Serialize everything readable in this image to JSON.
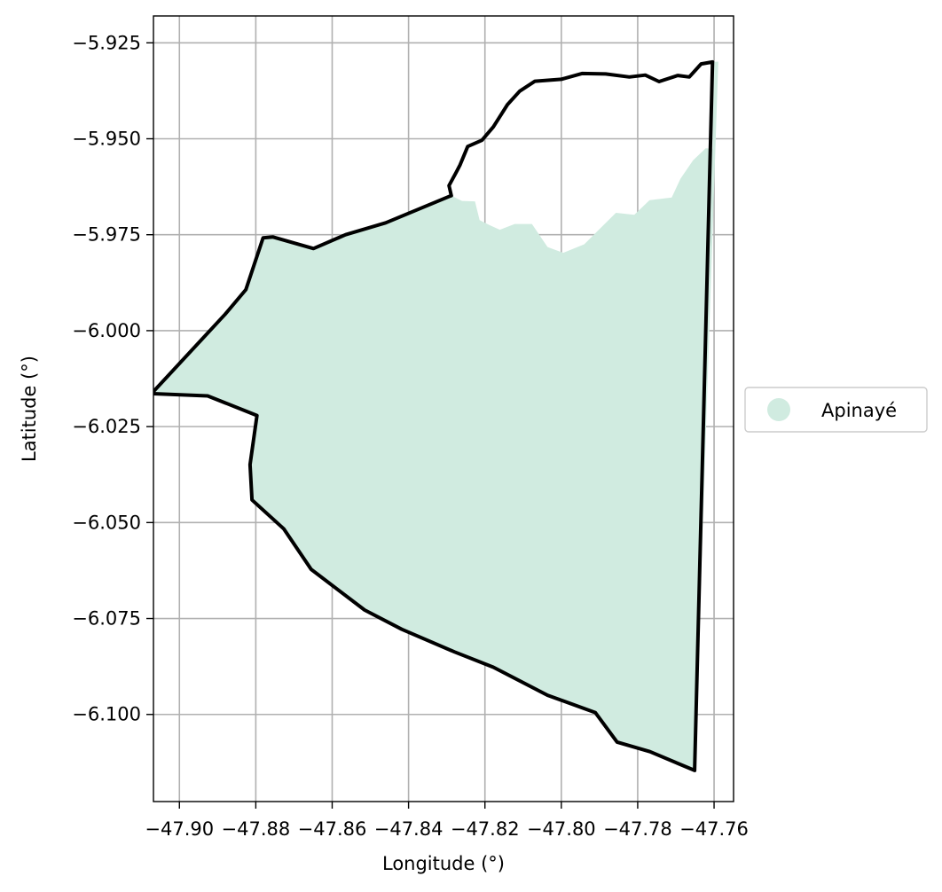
{
  "chart_data": {
    "type": "map",
    "title": "",
    "xlabel": "Longitude (°)",
    "ylabel": "Latitude (°)",
    "xlim": [
      -47.9068,
      -47.7549
    ],
    "ylim": [
      -6.1227,
      -5.918
    ],
    "xticks": [
      -47.9,
      -47.88,
      -47.86,
      -47.84,
      -47.82,
      -47.8,
      -47.78,
      -47.76
    ],
    "xtick_labels": [
      "−47.90",
      "−47.88",
      "−47.86",
      "−47.84",
      "−47.82",
      "−47.80",
      "−47.78",
      "−47.76"
    ],
    "yticks": [
      -5.925,
      -5.95,
      -5.975,
      -6.0,
      -6.025,
      -6.05,
      -6.075,
      -6.1
    ],
    "ytick_labels": [
      "−5.925",
      "−5.950",
      "−5.975",
      "−6.000",
      "−6.025",
      "−6.050",
      "−6.075",
      "−6.100"
    ],
    "grid": true,
    "legend": {
      "placement": "center-right-outside",
      "entries": [
        {
          "label": "Apinayé",
          "color": "#d0ebe0"
        }
      ]
    },
    "fill_color": "#d0ebe0",
    "boundary_color": "#000000",
    "territory_fill": [
      [
        -47.8288,
        -5.9648
      ],
      [
        -47.826,
        -5.9662
      ],
      [
        -47.8226,
        -5.9663
      ],
      [
        -47.8214,
        -5.9712
      ],
      [
        -47.8188,
        -5.9725
      ],
      [
        -47.8161,
        -5.9737
      ],
      [
        -47.8122,
        -5.9722
      ],
      [
        -47.8077,
        -5.9722
      ],
      [
        -47.8036,
        -5.9782
      ],
      [
        -47.7995,
        -5.9797
      ],
      [
        -47.794,
        -5.9775
      ],
      [
        -47.7904,
        -5.9739
      ],
      [
        -47.7857,
        -5.9693
      ],
      [
        -47.7809,
        -5.9698
      ],
      [
        -47.7769,
        -5.966
      ],
      [
        -47.7711,
        -5.9653
      ],
      [
        -47.7688,
        -5.9604
      ],
      [
        -47.7655,
        -5.9556
      ],
      [
        -47.7622,
        -5.9525
      ],
      [
        -47.7604,
        -5.9526
      ],
      [
        -47.7604,
        -5.93
      ],
      [
        -47.7589,
        -5.9299
      ],
      [
        -47.7651,
        -6.1146
      ],
      [
        -47.7768,
        -6.1097
      ],
      [
        -47.7854,
        -6.1072
      ],
      [
        -47.7911,
        -6.0995
      ],
      [
        -47.8036,
        -6.095
      ],
      [
        -47.8178,
        -6.0877
      ],
      [
        -47.828,
        -6.0837
      ],
      [
        -47.8418,
        -6.0778
      ],
      [
        -47.8515,
        -6.0728
      ],
      [
        -47.8655,
        -6.0622
      ],
      [
        -47.8727,
        -6.0516
      ],
      [
        -47.881,
        -6.0441
      ],
      [
        -47.8815,
        -6.0349
      ],
      [
        -47.8797,
        -6.0221
      ],
      [
        -47.8926,
        -6.017
      ],
      [
        -47.9073,
        -6.0164
      ],
      [
        -47.888,
        -5.9957
      ],
      [
        -47.8826,
        -5.9893
      ],
      [
        -47.8781,
        -5.9758
      ],
      [
        -47.8755,
        -5.9756
      ],
      [
        -47.8649,
        -5.9786
      ],
      [
        -47.8565,
        -5.975
      ],
      [
        -47.846,
        -5.9719
      ]
    ],
    "territory_boundary": [
      [
        -47.8288,
        -5.9648
      ],
      [
        -47.8294,
        -5.9622
      ],
      [
        -47.8275,
        -5.9587
      ],
      [
        -47.8265,
        -5.9568
      ],
      [
        -47.8245,
        -5.952
      ],
      [
        -47.8208,
        -5.9504
      ],
      [
        -47.8178,
        -5.9469
      ],
      [
        -47.8141,
        -5.9411
      ],
      [
        -47.8109,
        -5.9376
      ],
      [
        -47.8069,
        -5.935
      ],
      [
        -47.8,
        -5.9345
      ],
      [
        -47.7946,
        -5.933
      ],
      [
        -47.7884,
        -5.9331
      ],
      [
        -47.7822,
        -5.9339
      ],
      [
        -47.778,
        -5.9334
      ],
      [
        -47.7744,
        -5.9351
      ],
      [
        -47.7695,
        -5.9335
      ],
      [
        -47.7665,
        -5.9339
      ],
      [
        -47.7634,
        -5.9305
      ],
      [
        -47.7604,
        -5.93
      ],
      [
        -47.7651,
        -6.1146
      ],
      [
        -47.7768,
        -6.1097
      ],
      [
        -47.7854,
        -6.1072
      ],
      [
        -47.7911,
        -6.0995
      ],
      [
        -47.8036,
        -6.095
      ],
      [
        -47.8178,
        -6.0877
      ],
      [
        -47.828,
        -6.0837
      ],
      [
        -47.8418,
        -6.0778
      ],
      [
        -47.8515,
        -6.0728
      ],
      [
        -47.8655,
        -6.0622
      ],
      [
        -47.8727,
        -6.0516
      ],
      [
        -47.881,
        -6.0441
      ],
      [
        -47.8815,
        -6.0349
      ],
      [
        -47.8797,
        -6.0221
      ],
      [
        -47.8926,
        -6.017
      ],
      [
        -47.9073,
        -6.0164
      ],
      [
        -47.888,
        -5.9957
      ],
      [
        -47.8826,
        -5.9893
      ],
      [
        -47.8781,
        -5.9758
      ],
      [
        -47.8755,
        -5.9756
      ],
      [
        -47.8649,
        -5.9786
      ],
      [
        -47.8565,
        -5.975
      ],
      [
        -47.846,
        -5.9719
      ],
      [
        -47.8288,
        -5.9648
      ]
    ]
  }
}
